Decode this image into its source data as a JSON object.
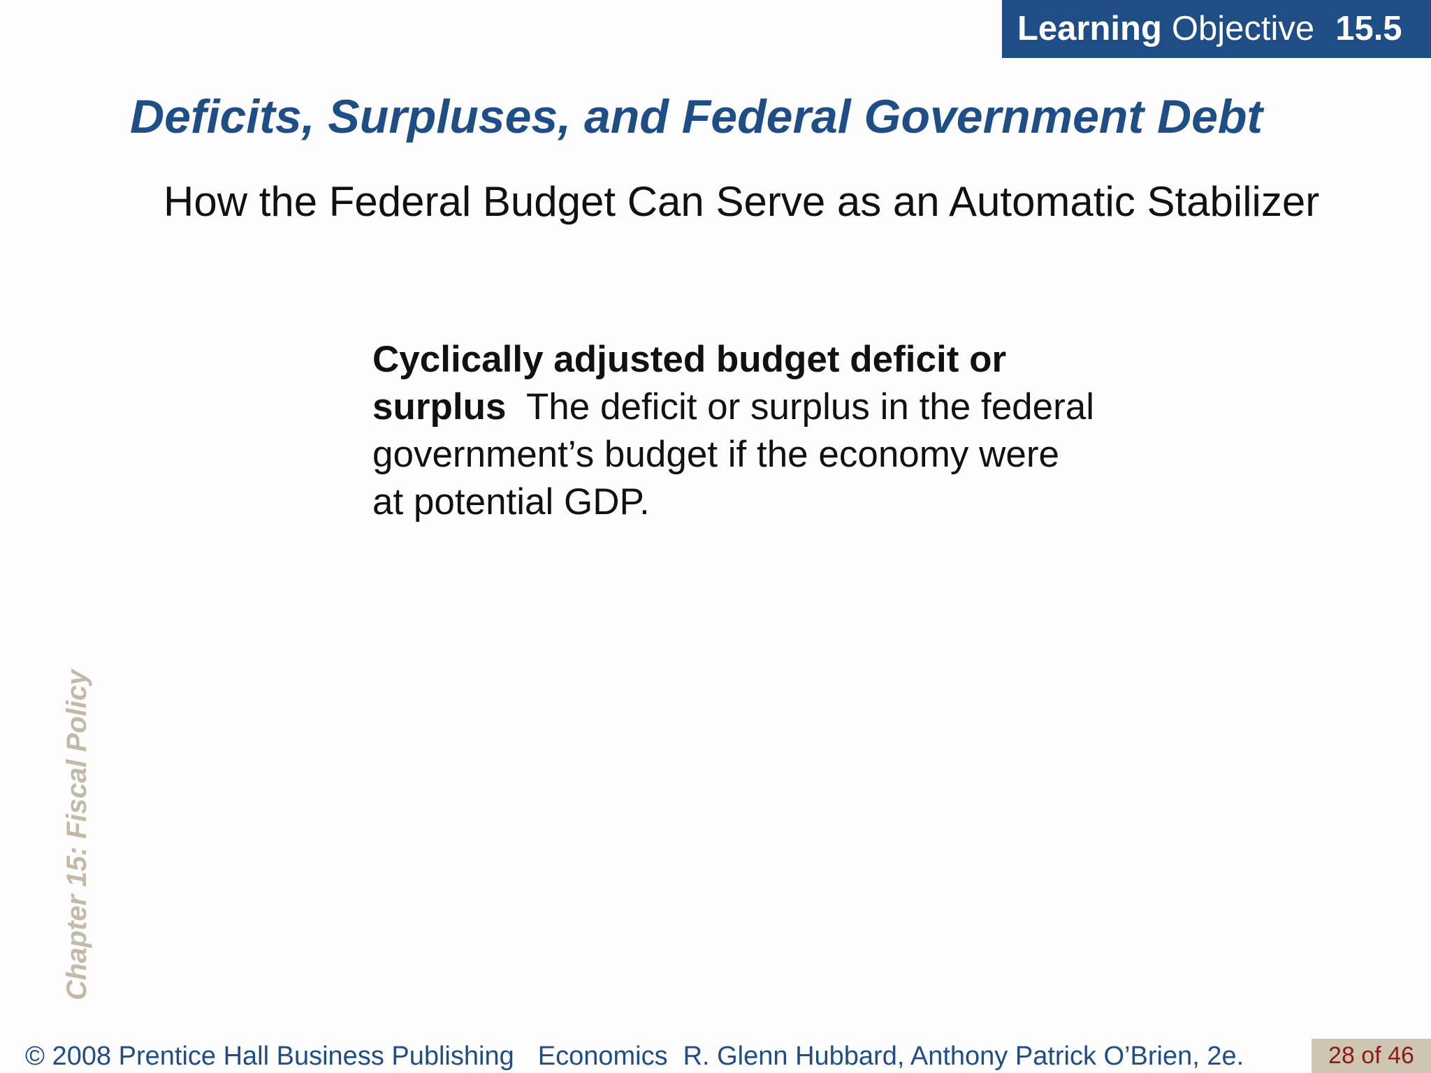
{
  "learning_objective": {
    "strong": "Learning",
    "light": "Objective",
    "number": "15.5"
  },
  "title": "Deficits, Surpluses, and Federal Government Debt",
  "subtitle": "How the Federal Budget Can Serve as an Automatic Stabilizer",
  "definition": {
    "term": "Cyclically adjusted budget deficit or surplus",
    "text": "The deficit or surplus in the federal government’s budget if the economy were at potential GDP."
  },
  "side_label": "Chapter 15:  Fiscal Policy",
  "footer": {
    "copyright": "© 2008 Prentice Hall Business Publishing",
    "book": "Economics",
    "authors": "R. Glenn Hubbard, Anthony Patrick O’Brien, 2e.",
    "page": "28 of 46"
  },
  "colors": {
    "accent": "#1f4e87",
    "side_label": "#c2b9a7",
    "page_badge_bg": "#cec6b3",
    "page_number": "#8b1a1a"
  }
}
